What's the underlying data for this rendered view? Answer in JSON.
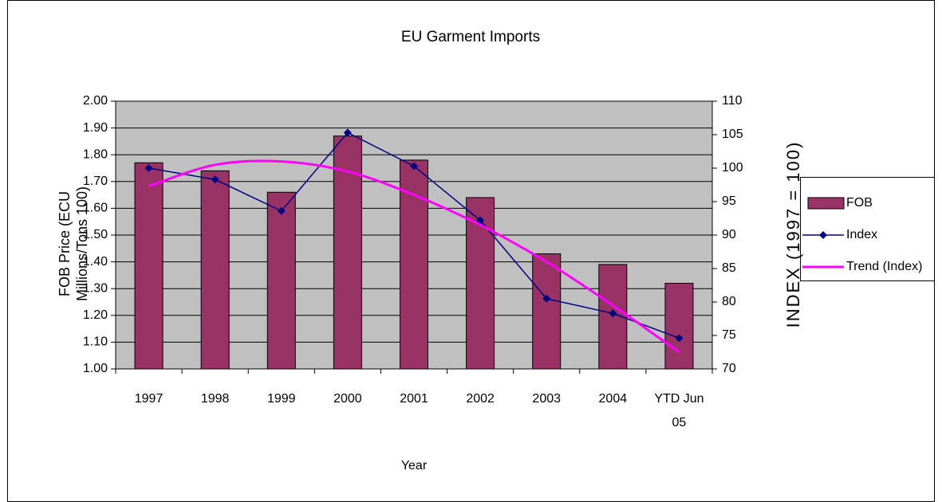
{
  "chart_data": {
    "type": "bar",
    "title": "EU Garment Imports",
    "x_label": "Year",
    "y_label": "FOB Price (ECU Millions/Tons 100)",
    "y2_label": "INDEX (1997 = 100)",
    "categories": [
      "1997",
      "1998",
      "1999",
      "2000",
      "2001",
      "2002",
      "2003",
      "2004",
      "YTD Jun 05"
    ],
    "series": [
      {
        "name": "FOB",
        "type": "bar",
        "color": "#993366",
        "values": [
          1.77,
          1.74,
          1.66,
          1.87,
          1.78,
          1.64,
          1.43,
          1.39,
          1.32
        ]
      },
      {
        "name": "Index",
        "type": "line",
        "axis": "y2",
        "color": "#000080",
        "values": [
          100,
          98.3,
          93.6,
          105.3,
          100.3,
          92.2,
          80.5,
          78.3,
          74.6
        ]
      },
      {
        "name": "Trend (Index)",
        "type": "trend",
        "axis": "y2",
        "color": "#ff00ff",
        "values": [
          97.3,
          100.5,
          101.0,
          99.5,
          96.0,
          91.5,
          86.0,
          79.5,
          72.5
        ]
      }
    ],
    "ylim": [
      1.0,
      2.0
    ],
    "yticks": [
      {
        "value": 1.0,
        "label": "1.00"
      },
      {
        "value": 1.1,
        "label": "1.10"
      },
      {
        "value": 1.2,
        "label": "1.20"
      },
      {
        "value": 1.3,
        "label": "1.30"
      },
      {
        "value": 1.4,
        "label": "1.40"
      },
      {
        "value": 1.5,
        "label": "1.50"
      },
      {
        "value": 1.6,
        "label": "1.60"
      },
      {
        "value": 1.7,
        "label": "1.70"
      },
      {
        "value": 1.8,
        "label": "1.80"
      },
      {
        "value": 1.9,
        "label": "1.90"
      },
      {
        "value": 2.0,
        "label": "2.00"
      }
    ],
    "y2lim": [
      70,
      110
    ],
    "y2ticks": [
      70,
      75,
      80,
      85,
      90,
      95,
      100,
      105,
      110
    ],
    "grid": true,
    "legend": "right"
  }
}
